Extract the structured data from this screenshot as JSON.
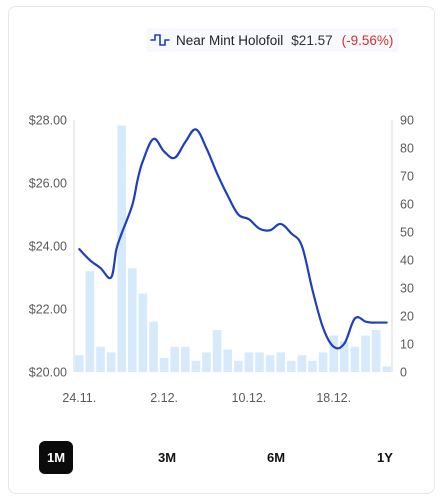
{
  "legend": {
    "icon": "price-line-icon",
    "name": "Near Mint Holofoil",
    "price": "$21.57",
    "change": "(-9.56%)",
    "line_color": "#1f3fbf",
    "change_color": "#d0312d"
  },
  "ranges": {
    "active": "1M",
    "items": [
      "1M",
      "3M",
      "6M",
      "1Y"
    ]
  },
  "chart_data": {
    "type": "line",
    "title": "",
    "x_tick_labels": [
      "24.11.",
      "2.12.",
      "10.12.",
      "18.12."
    ],
    "x_tick_positions": [
      0,
      8,
      16,
      24
    ],
    "y_left": {
      "label": "",
      "range": [
        20,
        28
      ],
      "ticks": [
        "$20.00",
        "$22.00",
        "$24.00",
        "$26.00",
        "$28.00"
      ],
      "tick_values": [
        20,
        22,
        24,
        26,
        28
      ]
    },
    "y_right": {
      "label": "",
      "range": [
        0,
        90
      ],
      "ticks": [
        "0",
        "10",
        "20",
        "30",
        "40",
        "50",
        "60",
        "70",
        "80",
        "90"
      ],
      "tick_values": [
        0,
        10,
        20,
        30,
        40,
        50,
        60,
        70,
        80,
        90
      ]
    },
    "grid": false,
    "series": [
      {
        "type": "line",
        "axis": "left",
        "color": "#1f3fbf",
        "x": [
          0,
          1,
          2,
          3,
          3.5,
          4,
          5,
          5.5,
          6,
          7,
          8,
          9,
          10,
          11,
          12,
          13,
          14,
          15,
          16,
          17,
          18,
          19,
          20,
          21,
          22,
          23,
          24,
          25,
          26,
          27,
          27.5,
          28,
          29
        ],
        "values": [
          23.9,
          23.55,
          23.3,
          23.0,
          23.9,
          24.4,
          25.3,
          26.1,
          26.7,
          27.4,
          27.0,
          26.8,
          27.3,
          27.7,
          27.1,
          26.3,
          25.6,
          25.0,
          24.85,
          24.55,
          24.5,
          24.7,
          24.4,
          24.0,
          22.6,
          21.4,
          20.8,
          20.9,
          21.7,
          21.6,
          21.57,
          21.57,
          21.57
        ]
      },
      {
        "type": "bar",
        "axis": "right",
        "color": "#d6eafb",
        "x": [
          0,
          1,
          2,
          3,
          4,
          5,
          6,
          7,
          8,
          9,
          10,
          11,
          12,
          13,
          14,
          15,
          16,
          17,
          18,
          19,
          20,
          21,
          22,
          23,
          24,
          25,
          26,
          27,
          28,
          29
        ],
        "values": [
          6,
          36,
          9,
          7,
          88,
          37,
          28,
          18,
          5,
          9,
          9,
          4,
          7,
          15,
          8,
          4,
          7,
          7,
          6,
          7,
          4,
          6,
          4,
          7,
          13,
          11,
          9,
          13,
          15,
          2
        ]
      }
    ]
  }
}
